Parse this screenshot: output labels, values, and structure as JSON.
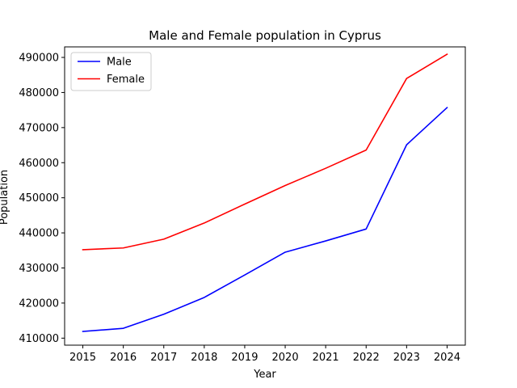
{
  "chart_data": {
    "type": "line",
    "title": "Male and Female population in Cyprus",
    "xlabel": "Year",
    "ylabel": "Population",
    "x": [
      2015,
      2016,
      2017,
      2018,
      2019,
      2020,
      2021,
      2022,
      2023,
      2024
    ],
    "x_ticks": [
      "2015",
      "2016",
      "2017",
      "2018",
      "2019",
      "2020",
      "2021",
      "2022",
      "2023",
      "2024"
    ],
    "y_ticks": [
      "410000",
      "420000",
      "430000",
      "440000",
      "450000",
      "460000",
      "470000",
      "480000",
      "490000"
    ],
    "y_tick_values": [
      410000,
      420000,
      430000,
      440000,
      450000,
      460000,
      470000,
      480000,
      490000
    ],
    "xlim": [
      2014.55,
      2024.45
    ],
    "ylim": [
      408000,
      493000
    ],
    "grid": false,
    "legend_position": "top-left",
    "series": [
      {
        "name": "Male",
        "color": "#0000ff",
        "values": [
          411900,
          412800,
          416800,
          421600,
          428000,
          434500,
          437700,
          441100,
          465100,
          475700
        ]
      },
      {
        "name": "Female",
        "color": "#ff0000",
        "values": [
          435200,
          435700,
          438200,
          442800,
          448200,
          453500,
          458400,
          463600,
          484000,
          490900
        ]
      }
    ]
  }
}
